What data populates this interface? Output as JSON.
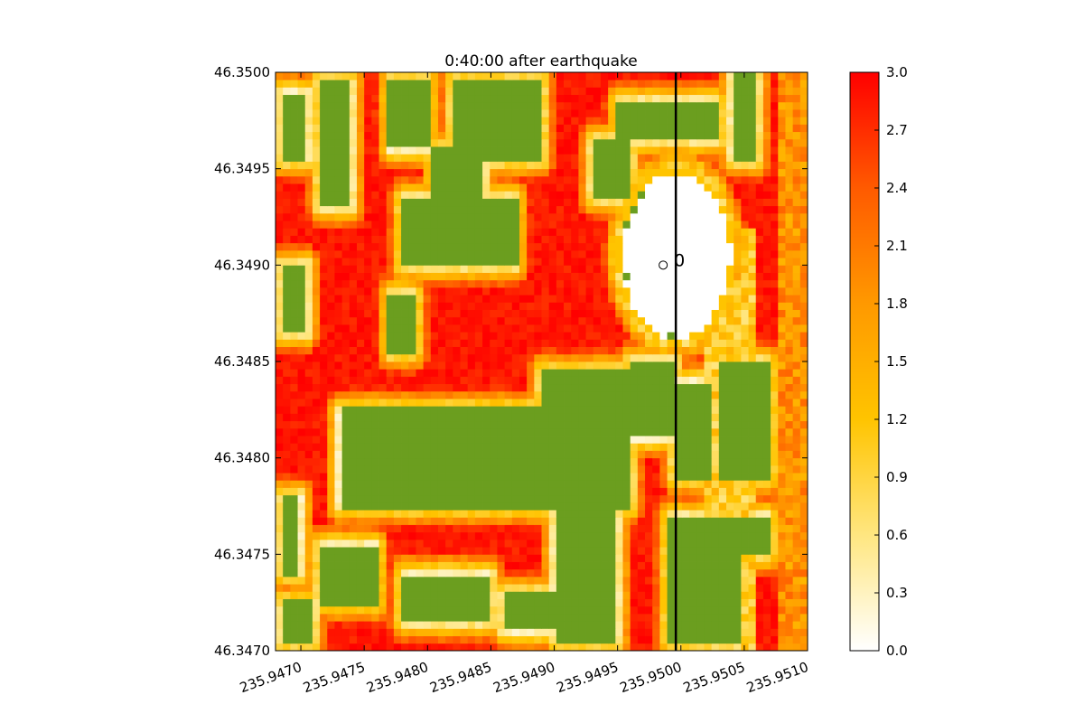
{
  "chart_data": {
    "type": "heatmap",
    "title": "0:40:00 after earthquake",
    "xlabel": "",
    "ylabel": "",
    "xlim": [
      235.9468,
      235.951
    ],
    "ylim": [
      46.347,
      46.35
    ],
    "x_ticks": [
      {
        "value": 235.947,
        "label": "235.9470"
      },
      {
        "value": 235.9475,
        "label": "235.9475"
      },
      {
        "value": 235.948,
        "label": "235.9480"
      },
      {
        "value": 235.9485,
        "label": "235.9485"
      },
      {
        "value": 235.949,
        "label": "235.9490"
      },
      {
        "value": 235.9495,
        "label": "235.9495"
      },
      {
        "value": 235.95,
        "label": "235.9500"
      },
      {
        "value": 235.9505,
        "label": "235.9505"
      },
      {
        "value": 235.951,
        "label": "235.9510"
      }
    ],
    "y_ticks": [
      {
        "value": 46.347,
        "label": "46.3470"
      },
      {
        "value": 46.3475,
        "label": "46.3475"
      },
      {
        "value": 46.348,
        "label": "46.3480"
      },
      {
        "value": 46.3485,
        "label": "46.3485"
      },
      {
        "value": 46.349,
        "label": "46.3490"
      },
      {
        "value": 46.3495,
        "label": "46.3495"
      },
      {
        "value": 46.35,
        "label": "46.3500"
      }
    ],
    "colorbar": {
      "min": 0.0,
      "max": 3.0,
      "ticks": [
        {
          "value": 0.0,
          "label": "0.0"
        },
        {
          "value": 0.3,
          "label": "0.3"
        },
        {
          "value": 0.6,
          "label": "0.6"
        },
        {
          "value": 0.9,
          "label": "0.9"
        },
        {
          "value": 1.2,
          "label": "1.2"
        },
        {
          "value": 1.5,
          "label": "1.5"
        },
        {
          "value": 1.8,
          "label": "1.8"
        },
        {
          "value": 2.1,
          "label": "2.1"
        },
        {
          "value": 2.4,
          "label": "2.4"
        },
        {
          "value": 2.7,
          "label": "2.7"
        },
        {
          "value": 3.0,
          "label": "3.0"
        }
      ],
      "colors": [
        "#ffffff",
        "#ffe680",
        "#ffc400",
        "#ff9900",
        "#ff5a00",
        "#ff0000"
      ]
    },
    "land_color": "#6b9e1f",
    "vertical_line": {
      "x": 235.94996
    },
    "marker": {
      "x": 235.94986,
      "y": 46.349,
      "label": "0"
    },
    "regions": {
      "circle": {
        "cx": 235.94996,
        "cy": 46.34905,
        "r": 0.00046
      },
      "land_blocks": [
        {
          "x0": 235.94685,
          "x1": 235.94705,
          "y0": 46.34955,
          "y1": 46.3499
        },
        {
          "x0": 235.94715,
          "x1": 235.9474,
          "y0": 46.3493,
          "y1": 46.34995
        },
        {
          "x0": 235.9477,
          "x1": 235.948,
          "y0": 46.3496,
          "y1": 46.34995
        },
        {
          "x0": 235.9478,
          "x1": 235.9487,
          "y0": 46.349,
          "y1": 46.34935
        },
        {
          "x0": 235.94805,
          "x1": 235.94845,
          "y0": 46.3492,
          "y1": 46.3496
        },
        {
          "x0": 235.9482,
          "x1": 235.9489,
          "y0": 46.34955,
          "y1": 46.34995
        },
        {
          "x0": 235.9493,
          "x1": 235.9496,
          "y0": 46.34935,
          "y1": 46.34965
        },
        {
          "x0": 235.9495,
          "x1": 235.9503,
          "y0": 46.34965,
          "y1": 46.34985
        },
        {
          "x0": 235.9504,
          "x1": 235.9506,
          "y0": 46.34955,
          "y1": 46.35
        },
        {
          "x0": 235.94685,
          "x1": 235.94705,
          "y0": 46.34865,
          "y1": 46.349
        },
        {
          "x0": 235.9477,
          "x1": 235.9479,
          "y0": 46.34855,
          "y1": 46.34885
        },
        {
          "x0": 235.9473,
          "x1": 235.9489,
          "y0": 46.34775,
          "y1": 46.34825
        },
        {
          "x0": 235.9489,
          "x1": 235.9496,
          "y0": 46.34775,
          "y1": 46.34845
        },
        {
          "x0": 235.9496,
          "x1": 235.94995,
          "y0": 46.3481,
          "y1": 46.3485
        },
        {
          "x0": 235.94995,
          "x1": 235.95025,
          "y0": 46.3479,
          "y1": 46.3484
        },
        {
          "x0": 235.9503,
          "x1": 235.9507,
          "y0": 46.3479,
          "y1": 46.3485
        },
        {
          "x0": 235.9499,
          "x1": 235.9505,
          "y0": 46.34705,
          "y1": 46.3477
        },
        {
          "x0": 235.9505,
          "x1": 235.9507,
          "y0": 46.3475,
          "y1": 46.3477
        },
        {
          "x0": 235.949,
          "x1": 235.9495,
          "y0": 46.34705,
          "y1": 46.3479
        },
        {
          "x0": 235.94685,
          "x1": 235.947,
          "y0": 46.3474,
          "y1": 46.3478
        },
        {
          "x0": 235.94715,
          "x1": 235.9476,
          "y0": 46.34725,
          "y1": 46.34755
        },
        {
          "x0": 235.9478,
          "x1": 235.9485,
          "y0": 46.34715,
          "y1": 46.3474
        },
        {
          "x0": 235.9486,
          "x1": 235.9491,
          "y0": 46.3471,
          "y1": 46.3473
        },
        {
          "x0": 235.94685,
          "x1": 235.9471,
          "y0": 46.34705,
          "y1": 46.34725
        }
      ]
    }
  }
}
